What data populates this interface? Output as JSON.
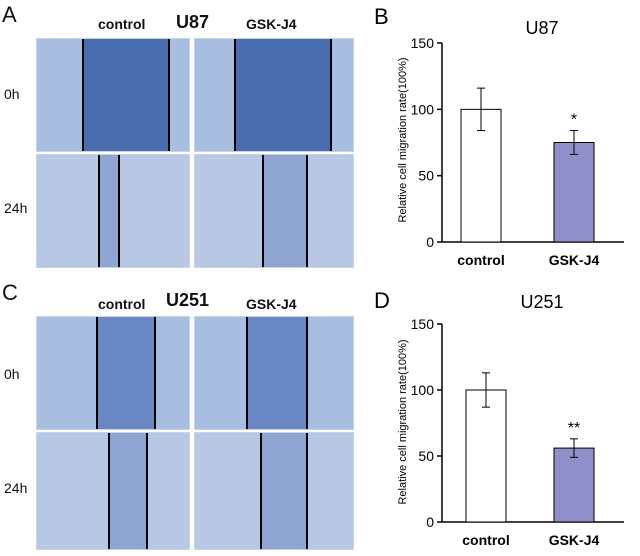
{
  "panels": {
    "A": {
      "letter": "A",
      "cell_line": "U87",
      "col_headers": [
        "control",
        "GSK-J4"
      ],
      "row_labels": [
        "0h",
        "24h"
      ]
    },
    "C": {
      "letter": "C",
      "cell_line": "U251",
      "col_headers": [
        "control",
        "GSK-J4"
      ],
      "row_labels": [
        "0h",
        "24h"
      ]
    }
  },
  "colors": {
    "gap": "#4a6dad",
    "cells": "#a8bee0",
    "bar_control": "#ffffff",
    "bar_gskj4": "#8f8fc9"
  },
  "chart_data": [
    {
      "panel_letter": "B",
      "type": "bar",
      "title": "U87",
      "xlabel": "",
      "ylabel": "Relative cell migration rate(100%)",
      "categories": [
        "control",
        "GSK-J4"
      ],
      "values": [
        100,
        75
      ],
      "errors": [
        16,
        9
      ],
      "annotations": [
        "",
        "*"
      ],
      "ylim": [
        0,
        150
      ],
      "yticks": [
        0,
        50,
        100,
        150
      ],
      "grid": false
    },
    {
      "panel_letter": "D",
      "type": "bar",
      "title": "U251",
      "xlabel": "",
      "ylabel": "Relative cell migration rate(100%)",
      "categories": [
        "control",
        "GSK-J4"
      ],
      "values": [
        100,
        56
      ],
      "errors": [
        13,
        7
      ],
      "annotations": [
        "",
        "**"
      ],
      "ylim": [
        0,
        150
      ],
      "yticks": [
        0,
        50,
        100,
        150
      ],
      "grid": false
    }
  ]
}
